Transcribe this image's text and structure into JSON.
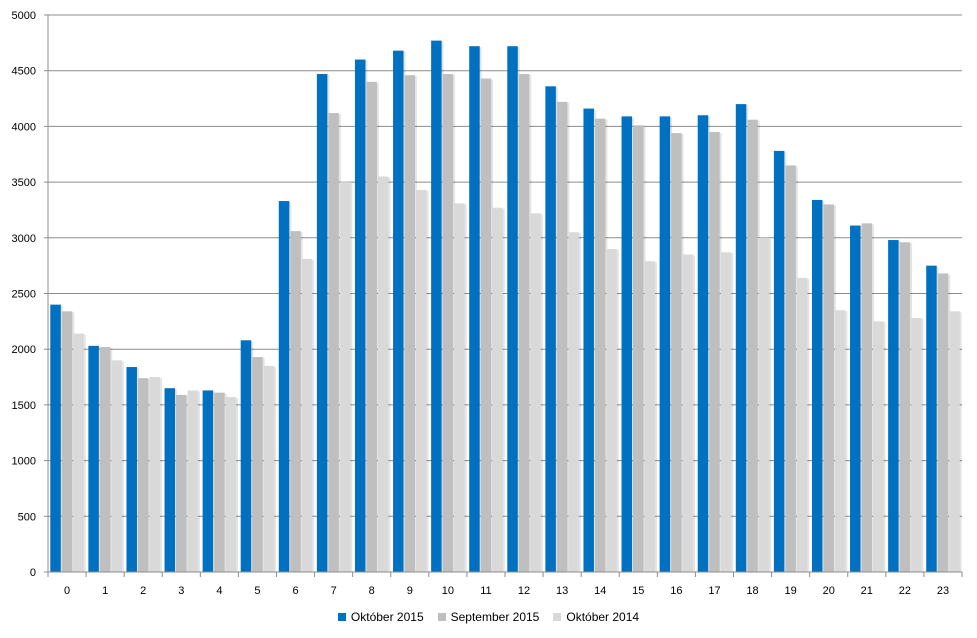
{
  "chart_data": {
    "type": "bar",
    "categories": [
      "0",
      "1",
      "2",
      "3",
      "4",
      "5",
      "6",
      "7",
      "8",
      "9",
      "10",
      "11",
      "12",
      "13",
      "14",
      "15",
      "16",
      "17",
      "18",
      "19",
      "20",
      "21",
      "22",
      "23"
    ],
    "series": [
      {
        "name": "Október 2015",
        "color": "#0070C0",
        "values": [
          2400,
          2030,
          1840,
          1650,
          1630,
          2080,
          3330,
          4470,
          4600,
          4680,
          4770,
          4720,
          4720,
          4360,
          4160,
          4090,
          4090,
          4100,
          4200,
          3780,
          3340,
          3110,
          2980,
          2750
        ]
      },
      {
        "name": "September 2015",
        "color": "#BFBFBF",
        "values": [
          2340,
          2020,
          1740,
          1590,
          1610,
          1930,
          3060,
          4120,
          4400,
          4460,
          4470,
          4430,
          4470,
          4220,
          4070,
          4010,
          3940,
          3950,
          4060,
          3650,
          3300,
          3130,
          2960,
          2680
        ]
      },
      {
        "name": "Október 2014",
        "color": "#D9D9D9",
        "values": [
          2140,
          1900,
          1750,
          1630,
          1570,
          1850,
          2810,
          3500,
          3550,
          3430,
          3310,
          3270,
          3220,
          3050,
          2900,
          2790,
          2850,
          2870,
          3000,
          2640,
          2350,
          2250,
          2280,
          2340
        ]
      }
    ],
    "y_ticks": [
      "0",
      "500",
      "1000",
      "1500",
      "2000",
      "2500",
      "3000",
      "3500",
      "4000",
      "4500",
      "5000"
    ],
    "ylim": [
      0,
      5000
    ],
    "grid": true,
    "legend_position": "bottom"
  }
}
